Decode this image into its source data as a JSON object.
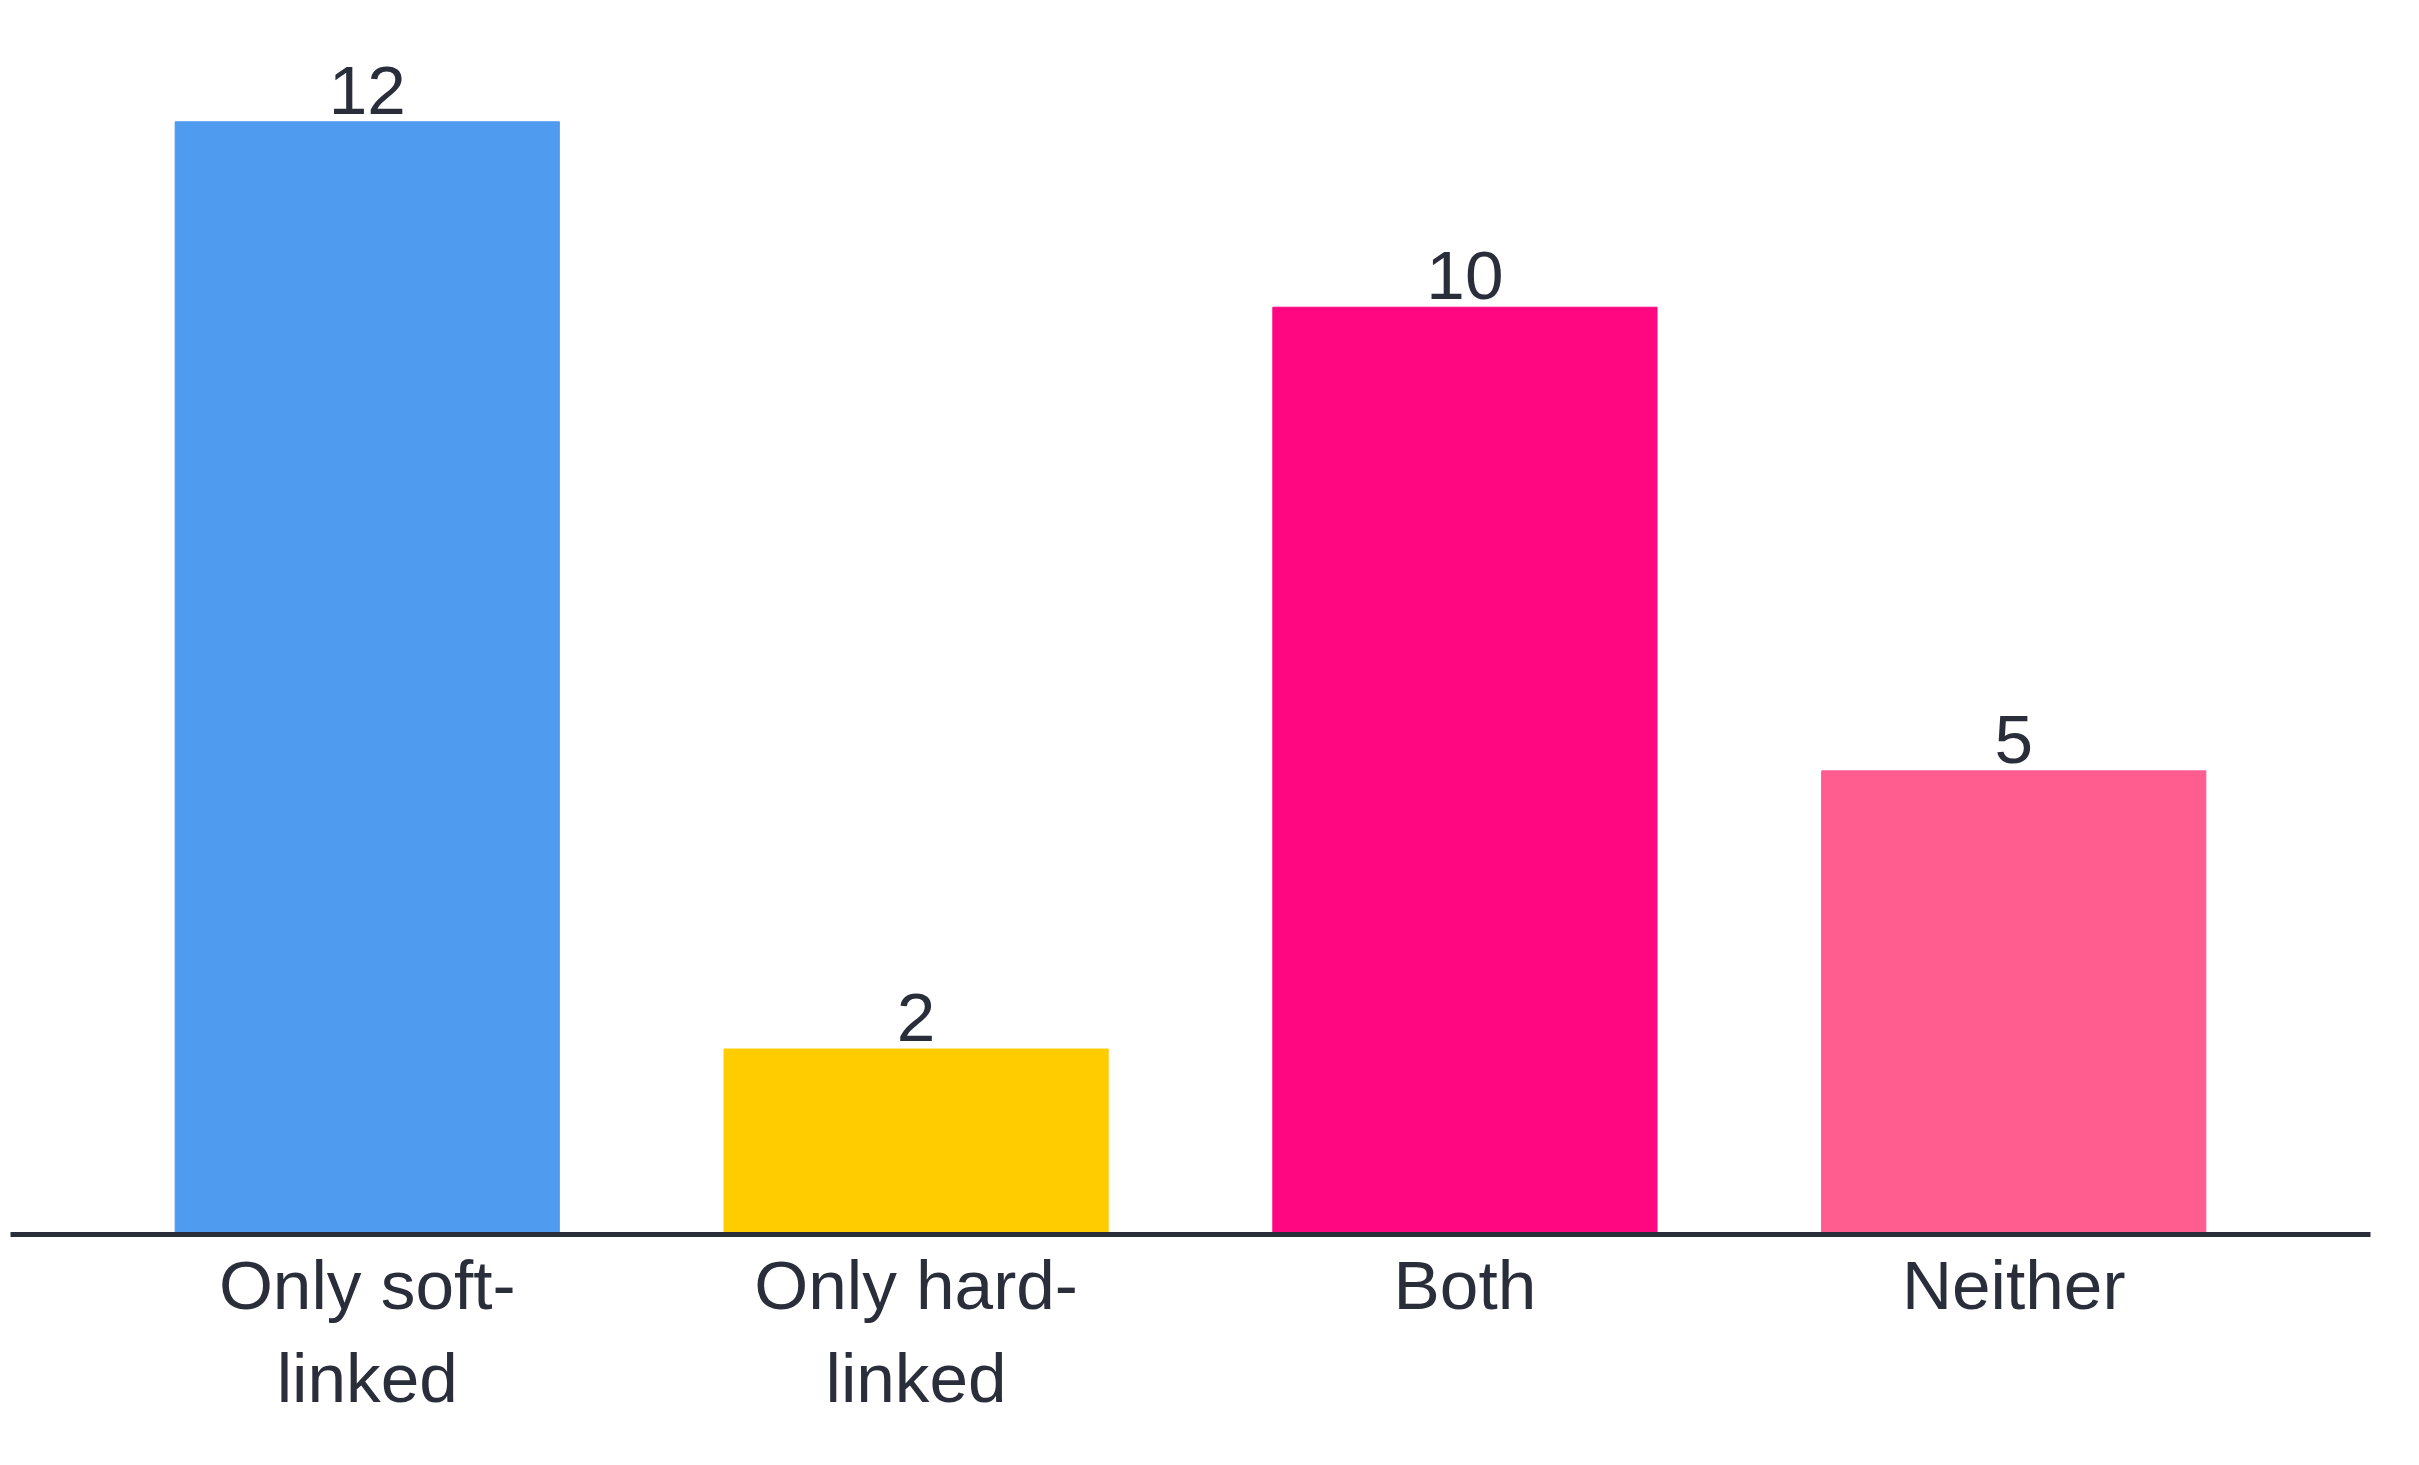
{
  "chart_data": {
    "type": "bar",
    "categories": [
      "Only soft-linked",
      "Only hard-linked",
      "Both",
      "Neither"
    ],
    "values": [
      12,
      2,
      10,
      5
    ],
    "colors": [
      "#4f9bef",
      "#ffcc00",
      "#ff0780",
      "#ff5c8f"
    ],
    "data_labels": true,
    "tick_labels": "x"
  }
}
